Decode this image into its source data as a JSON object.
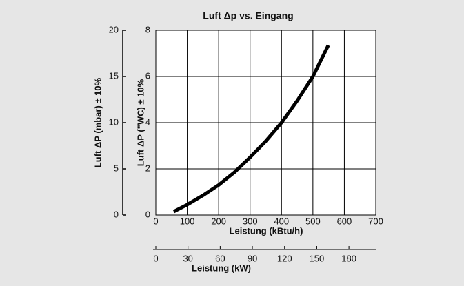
{
  "chart_data": {
    "type": "line",
    "title": "Luft Δp vs. Eingang",
    "x_label": "Leistung (kBtu/h)",
    "y_label": "Luft ΔP (\"WC) ± 10%",
    "x2_label": "Leistung (kW)",
    "y2_label": "Luft ΔP (mbar) ± 10%",
    "x": [
      57,
      100,
      150,
      200,
      250,
      300,
      350,
      400,
      450,
      500,
      549
    ],
    "series": [
      {
        "name": "Luft Δp",
        "color": "#000000",
        "values": [
          0.15,
          0.45,
          0.85,
          1.3,
          1.85,
          2.5,
          3.2,
          4.0,
          4.95,
          6.0,
          7.35
        ]
      }
    ],
    "xlim": [
      0,
      700
    ],
    "xticks": [
      0,
      100,
      200,
      300,
      400,
      500,
      600,
      700
    ],
    "ylim": [
      0,
      8
    ],
    "yticks": [
      0,
      2,
      4,
      6,
      8
    ],
    "y2lim": [
      0,
      20
    ],
    "y2ticks": [
      0,
      5,
      10,
      15,
      20
    ],
    "x2lim": [
      0,
      205
    ],
    "x2ticks": [
      0,
      30,
      60,
      90,
      120,
      150,
      180
    ],
    "grid": true
  }
}
